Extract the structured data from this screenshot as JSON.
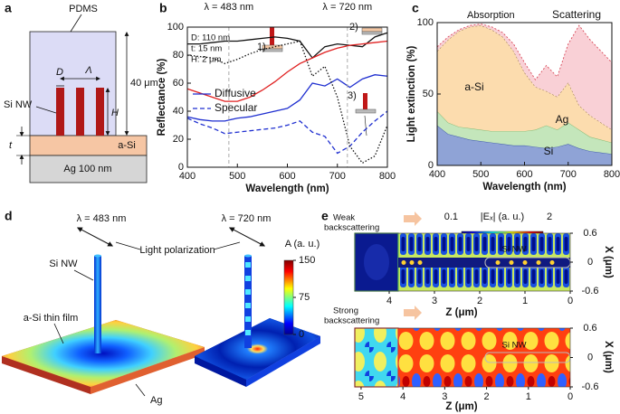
{
  "panel_labels": [
    "a",
    "b",
    "c",
    "d",
    "e"
  ],
  "chart_data": [
    {
      "type": "line",
      "x_label": "Wavelength (nm)",
      "y_label": "Reflectance (%)",
      "x": [
        400,
        425,
        450,
        475,
        500,
        525,
        550,
        575,
        600,
        625,
        650,
        675,
        700,
        725,
        750,
        775,
        800
      ],
      "series": [
        {
          "name": "Diffusive",
          "color": "#1f2fd0",
          "style": "solid",
          "values": [
            36,
            34,
            33,
            33,
            35,
            36,
            38,
            40,
            42,
            48,
            60,
            58,
            63,
            57,
            63,
            66,
            65
          ]
        },
        {
          "name": "Specular",
          "color": "#1f2fd0",
          "style": "dashed",
          "values": [
            35,
            31,
            28,
            24,
            25,
            26,
            27,
            28,
            30,
            33,
            25,
            22,
            10,
            15,
            25,
            33,
            40
          ]
        },
        {
          "color": "#111111",
          "style": "solid",
          "values": [
            88,
            88,
            89,
            90,
            90,
            91,
            92,
            93,
            92,
            90,
            78,
            86,
            88,
            87,
            86,
            93,
            96
          ]
        },
        {
          "color": "#111111",
          "style": "dotted",
          "values": [
            80,
            79,
            78,
            74,
            77,
            81,
            84,
            86,
            88,
            90,
            65,
            72,
            50,
            15,
            3,
            8,
            30
          ]
        },
        {
          "color": "#e02020",
          "style": "solid",
          "values": [
            56,
            53,
            50,
            47,
            47,
            50,
            55,
            61,
            68,
            74,
            78,
            82,
            85,
            87,
            88,
            89,
            90
          ]
        }
      ],
      "xlim": [
        400,
        800
      ],
      "xticks": [
        400,
        500,
        600,
        700,
        800
      ],
      "ylim": [
        0,
        100
      ],
      "yticks": [
        0,
        20,
        40,
        60,
        80,
        100
      ],
      "grid": false,
      "legend": "left",
      "vlines": [
        {
          "value": 483,
          "label": "λ = 483 nm"
        },
        {
          "value": 720,
          "label": "λ = 720 nm"
        }
      ],
      "annotations": [
        "D: 110 nm",
        "t: 15 nm",
        "H: 2 μm",
        "1)",
        "2)",
        "3)"
      ]
    },
    {
      "type": "area",
      "stacked": true,
      "x_label": "Wavelength (nm)",
      "y_label": "Light extinction (%)",
      "x": [
        400,
        425,
        450,
        475,
        500,
        525,
        550,
        575,
        600,
        625,
        650,
        675,
        700,
        725,
        750,
        775,
        800
      ],
      "series": [
        {
          "name": "Si",
          "color": "#8fa3d6",
          "line_color": "#3a56a8",
          "values": [
            28,
            22,
            20,
            18,
            17,
            16,
            15,
            14,
            14,
            13,
            12,
            13,
            15,
            12,
            10,
            9,
            8
          ]
        },
        {
          "name": "Ag",
          "color": "#c4e6bb",
          "line_color": "#7fb872",
          "values": [
            10,
            8,
            7,
            8,
            8,
            8,
            9,
            10,
            10,
            12,
            16,
            12,
            15,
            13,
            10,
            9,
            8
          ]
        },
        {
          "name": "a-Si",
          "color": "#fcdcae",
          "line_color": "#8a6a3a",
          "values": [
            42,
            58,
            67,
            71,
            73,
            71,
            66,
            56,
            41,
            30,
            24,
            23,
            28,
            17,
            15,
            12,
            9
          ]
        },
        {
          "name": "Scattering",
          "color": "#f9d0d6",
          "line_color": "#d84a5a",
          "values": [
            3,
            2,
            1,
            1,
            1,
            2,
            3,
            5,
            7,
            5,
            18,
            14,
            27,
            56,
            53,
            50,
            47
          ]
        }
      ],
      "xlim": [
        400,
        800
      ],
      "xticks": [
        400,
        500,
        600,
        700,
        800
      ],
      "ylim": [
        0,
        100
      ],
      "yticks": [
        0,
        50,
        100
      ],
      "grid": false,
      "legend": "inline",
      "annotations": [
        "Absorption"
      ]
    }
  ],
  "diagram_a": {
    "labels": [
      "PDMS",
      "40 μm",
      "D",
      "Λ",
      "H",
      "Si NW",
      "t",
      "a-Si",
      "Ag 100 nm"
    ]
  },
  "diagram_d": {
    "wavelengths": [
      "λ = 483 nm",
      "λ = 720 nm"
    ],
    "polarization": "Light polarization",
    "nanowire": "Si NW",
    "film": "a-Si thin film",
    "substrate": "Ag",
    "colorbar": {
      "title": "A (a. u.)",
      "ticks": [
        0,
        75,
        150
      ]
    }
  },
  "diagram_e": {
    "colorbar": {
      "title": "|Eₓ| (a. u.)",
      "ticks": [
        0.1,
        2
      ]
    },
    "z_label": "Z (μm)",
    "x_label": "X (μm)",
    "nanowire": "Si NW",
    "maps": [
      {
        "note": [
          "Weak",
          "backscattering"
        ],
        "zlim": [
          4.76,
          0
        ],
        "zticks": [
          4,
          3,
          2,
          1,
          0
        ],
        "xlim": [
          0.6,
          -0.6
        ],
        "xticks": [
          0.6,
          0,
          -0.6
        ]
      },
      {
        "note": [
          "Strong",
          "backscattering"
        ],
        "zlim": [
          5.15,
          0
        ],
        "zticks": [
          5,
          4,
          3,
          2,
          1,
          0
        ],
        "xlim": [
          0.6,
          -0.6
        ],
        "xticks": [
          0.6,
          0,
          -0.6
        ]
      }
    ]
  }
}
